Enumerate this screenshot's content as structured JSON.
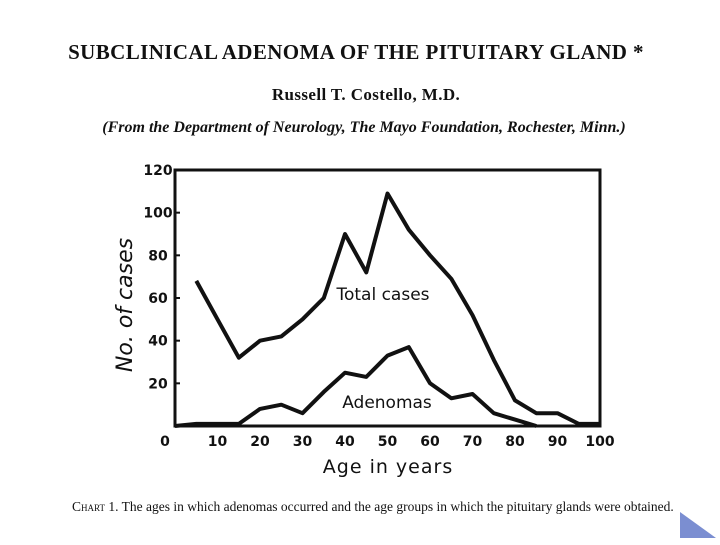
{
  "paper": {
    "title": "SUBCLINICAL ADENOMA OF THE PITUITARY GLAND *",
    "author": "Russell T. Costello, M.D.",
    "affiliation": "(From the Department of Neurology, The Mayo Foundation, Rochester, Minn.)",
    "caption_label": "Chart 1.",
    "caption_text": "The ages in which adenomas occurred and the age groups in which the pituitary glands were obtained."
  },
  "chart_data": {
    "type": "line",
    "xlabel": "Age in years",
    "ylabel": "No. of cases",
    "xlim": [
      0,
      100
    ],
    "ylim": [
      0,
      120
    ],
    "x_ticks": [
      0,
      10,
      20,
      30,
      40,
      50,
      60,
      70,
      80,
      90,
      100
    ],
    "y_ticks": [
      20,
      40,
      60,
      80,
      100,
      120
    ],
    "grid": false,
    "legend": "none",
    "series": [
      {
        "name": "Total cases",
        "color": "#111111",
        "x": [
          5,
          10,
          15,
          20,
          25,
          30,
          35,
          40,
          45,
          50,
          55,
          60,
          65,
          70,
          75,
          80,
          85,
          90,
          95,
          100
        ],
        "y": [
          68,
          50,
          32,
          40,
          42,
          50,
          60,
          90,
          72,
          109,
          92,
          80,
          69,
          52,
          31,
          12,
          6,
          6,
          1,
          1
        ]
      },
      {
        "name": "Adenomas",
        "color": "#111111",
        "x": [
          0,
          5,
          10,
          15,
          20,
          25,
          30,
          35,
          40,
          45,
          50,
          55,
          60,
          65,
          70,
          75,
          80,
          85
        ],
        "y": [
          0,
          1,
          1,
          1,
          8,
          10,
          6,
          16,
          25,
          23,
          33,
          37,
          20,
          13,
          15,
          6,
          3,
          0
        ]
      }
    ]
  },
  "nav": {
    "icon": "triangle-next-icon",
    "color": "#7b8ed1"
  }
}
